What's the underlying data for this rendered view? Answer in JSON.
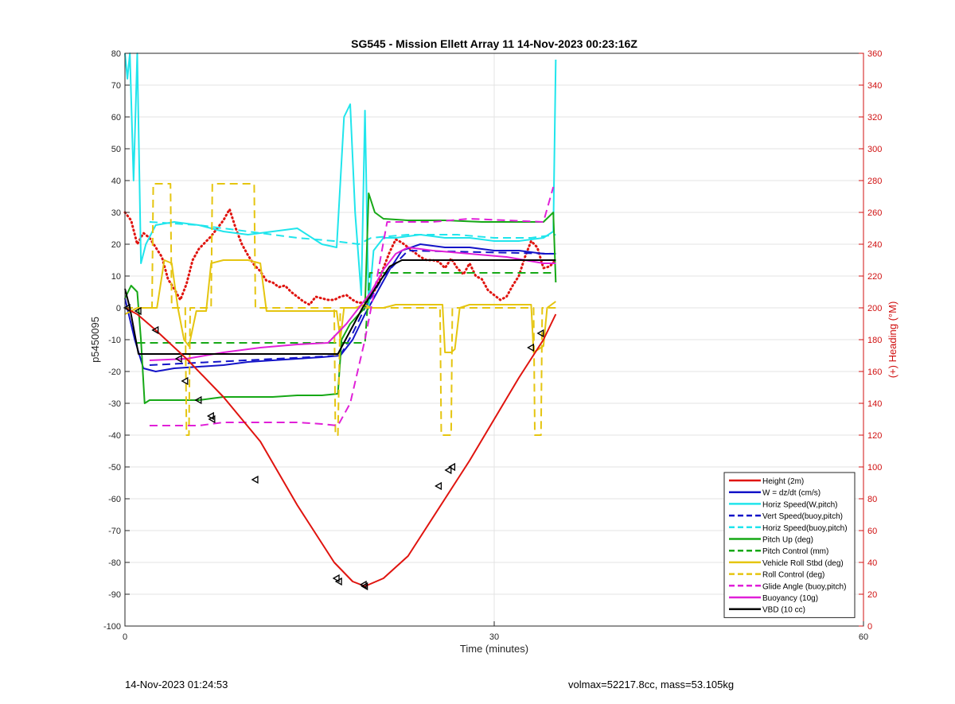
{
  "chart_data": {
    "type": "line",
    "title": "SG545 - Mission Ellett Array 11 14-Nov-2023 00:23:16Z",
    "xlabel": "Time (minutes)",
    "ylabel": "p5450095",
    "y2label": "(+) Heading (°M)",
    "xlim": [
      0,
      60
    ],
    "ylim": [
      -100,
      80
    ],
    "y2lim": [
      0,
      360
    ],
    "xticks": [
      0,
      30,
      60
    ],
    "yticks": [
      -100,
      -90,
      -80,
      -70,
      -60,
      -50,
      -40,
      -30,
      -20,
      -10,
      0,
      10,
      20,
      30,
      40,
      50,
      60,
      70,
      80
    ],
    "y2ticks": [
      0,
      20,
      40,
      60,
      80,
      100,
      120,
      140,
      160,
      180,
      200,
      220,
      240,
      260,
      280,
      300,
      320,
      340,
      360
    ],
    "grid": true,
    "legend_position": "bottom-right",
    "series": [
      {
        "name": "Height (2m)",
        "color": "#e0140f",
        "style": "solid",
        "x": [
          0,
          1,
          2.5,
          5,
          8,
          11,
          14,
          17,
          18.5,
          19.5,
          21,
          23,
          26,
          28,
          30,
          32,
          34,
          35
        ],
        "y": [
          0,
          -2,
          -7,
          -16,
          -28,
          -42,
          -62,
          -80,
          -86,
          -87.5,
          -85,
          -78,
          -60,
          -48,
          -35,
          -22,
          -10,
          -2
        ]
      },
      {
        "name": "W = dz/dt (cm/s)",
        "color": "#1414c8",
        "style": "solid",
        "x": [
          0,
          0.8,
          1.5,
          2.5,
          4,
          6,
          8,
          10,
          12,
          14,
          16,
          17.5,
          18.5,
          19.5,
          20.5,
          21.5,
          22.5,
          24,
          26,
          28,
          30,
          32,
          34,
          35
        ],
        "y": [
          3,
          -10,
          -19,
          -20,
          -19,
          -18.5,
          -18,
          -17,
          -16.5,
          -16,
          -15.5,
          -15,
          -10,
          -2,
          5,
          12,
          18,
          20,
          19,
          19,
          18,
          18,
          17,
          17
        ]
      },
      {
        "name": "Horiz Speed(W,pitch)",
        "color": "#20e5ec",
        "style": "solid",
        "x": [
          0,
          0.2,
          0.4,
          0.7,
          1.0,
          1.3,
          1.7,
          2.5,
          4,
          6,
          8,
          10,
          12,
          14,
          16,
          17.2,
          17.8,
          18.3,
          18.7,
          19.2,
          19.5,
          19.8,
          20.2,
          21,
          22,
          24,
          26,
          28,
          30,
          32,
          34,
          34.8,
          35
        ],
        "y": [
          80,
          72,
          80,
          40,
          80,
          14,
          20,
          26,
          27,
          26,
          24,
          23,
          24,
          25,
          20,
          19,
          60,
          64,
          30,
          4,
          62,
          0,
          18,
          22,
          22,
          23,
          22,
          22,
          21,
          21,
          22,
          24,
          78
        ]
      },
      {
        "name": "Vert Speed(buoy,pitch)",
        "color": "#1414c8",
        "style": "dashed",
        "x": [
          2,
          17.5,
          18.5,
          19.5,
          21,
          23,
          35
        ],
        "y": [
          -18,
          -15,
          -8,
          0,
          10,
          18,
          17
        ]
      },
      {
        "name": "Horiz Speed(buoy,pitch)",
        "color": "#20e5ec",
        "style": "dashed",
        "x": [
          2,
          6,
          10,
          14,
          17,
          19,
          20,
          23,
          27,
          30,
          33,
          35
        ],
        "y": [
          27,
          26,
          24,
          22,
          21,
          20,
          22,
          23,
          23,
          22,
          22,
          23
        ]
      },
      {
        "name": "Pitch Up (deg)",
        "color": "#16a816",
        "style": "solid",
        "x": [
          0,
          0.5,
          1,
          1.3,
          1.6,
          2,
          4,
          6,
          8,
          10,
          12,
          14,
          16,
          17.3,
          17.6,
          18.3,
          19,
          19.5,
          19.8,
          20.3,
          21,
          23,
          26,
          29,
          32,
          34,
          34.8,
          35
        ],
        "y": [
          3,
          7,
          5,
          -10,
          -30,
          -29,
          -29,
          -29,
          -28,
          -28,
          -28,
          -27.5,
          -27.5,
          -27,
          -10,
          -5,
          -2,
          0,
          36,
          30,
          28,
          27.5,
          27.5,
          27,
          27,
          27,
          30,
          8
        ]
      },
      {
        "name": "Pitch Control (mm)",
        "color": "#16a816",
        "style": "dashed",
        "x": [
          1,
          19.5,
          19.9,
          35
        ],
        "y": [
          -11,
          -11,
          11,
          11
        ]
      },
      {
        "name": "Vehicle Roll Stbd (deg)",
        "color": "#e5c510",
        "style": "solid",
        "x": [
          0,
          1,
          2,
          2.6,
          3.2,
          3.8,
          4.3,
          4.8,
          5.2,
          5.8,
          6.6,
          7,
          8,
          9,
          10,
          11,
          11.5,
          12,
          14,
          16,
          17.2,
          17.5,
          17.8,
          18.3,
          18.7,
          19.5,
          20,
          21,
          22,
          23,
          25,
          25.8,
          26,
          26.5,
          26.8,
          27.2,
          28,
          30,
          32,
          33,
          33.2,
          33.6,
          34,
          34.3,
          35
        ],
        "y": [
          -2,
          0,
          0,
          0,
          15,
          14,
          0,
          -10,
          -12,
          -1,
          -1,
          14,
          15,
          15,
          15,
          14,
          -1,
          -1,
          -1,
          -1,
          -1,
          -10,
          0,
          0,
          0,
          1,
          0,
          0,
          1,
          1,
          1,
          1,
          -14,
          -14,
          -13,
          0,
          1,
          1,
          1,
          1,
          -14,
          -13,
          -12,
          0,
          2
        ]
      },
      {
        "name": "Roll Control (deg)",
        "color": "#e5c510",
        "style": "dashed",
        "x": [
          0,
          2.2,
          2.3,
          3.7,
          3.8,
          4.9,
          5.0,
          5.2,
          5.3,
          7.0,
          7.1,
          10.5,
          10.6,
          17.0,
          17.1,
          17.3,
          17.5,
          25.6,
          25.7,
          26.5,
          26.6,
          33.2,
          33.3,
          33.8,
          33.9,
          35
        ],
        "y": [
          0,
          0,
          39,
          39,
          0,
          0,
          -40,
          -40,
          0,
          0,
          39,
          39,
          0,
          0,
          -40,
          -40,
          0,
          0,
          -40,
          -40,
          0,
          0,
          -40,
          -40,
          0,
          0
        ]
      },
      {
        "name": "Glide Angle (buoy,pitch)",
        "color": "#e020d8",
        "style": "dashed",
        "x": [
          2,
          4,
          6,
          8,
          10,
          12,
          14,
          16,
          17.3,
          18.3,
          19.5,
          20.5,
          21.3,
          22,
          25,
          28,
          31,
          34,
          34.8
        ],
        "y": [
          -37,
          -37,
          -37,
          -36,
          -36,
          -36,
          -36,
          -36.5,
          -37,
          -30,
          -10,
          10,
          27,
          27,
          27,
          28,
          27.5,
          27,
          38
        ]
      },
      {
        "name": "Buoyancy (10g)",
        "color": "#e020d8",
        "style": "solid",
        "x": [
          2,
          5,
          8,
          11,
          14,
          16.5,
          18,
          19,
          20,
          21,
          22,
          23,
          25,
          28,
          31,
          34,
          35
        ],
        "y": [
          -16.5,
          -16,
          -14,
          -12.5,
          -11.5,
          -11,
          -5,
          0,
          5,
          12,
          17,
          19,
          18,
          17,
          16,
          14,
          14
        ]
      },
      {
        "name": "VBD (10 cc)",
        "color": "#000000",
        "style": "solid",
        "x": [
          0,
          0.4,
          1.1,
          3,
          8,
          12,
          15,
          17.3,
          19.3,
          21.5,
          22.5,
          25,
          30,
          35
        ],
        "y": [
          6,
          0,
          -14.5,
          -14.5,
          -14.5,
          -14.5,
          -14.5,
          -14.5,
          0,
          13,
          15,
          15,
          15,
          15
        ]
      }
    ],
    "heading": {
      "color": "#e0140f",
      "style": "dotted",
      "axis": "right",
      "x": [
        0,
        0.5,
        1,
        1.5,
        2,
        2.5,
        3,
        3.5,
        4,
        4.5,
        5,
        5.5,
        6,
        6.5,
        7,
        7.5,
        8,
        8.5,
        9,
        9.5,
        10,
        10.5,
        11,
        11.5,
        12,
        12.5,
        13,
        13.5,
        14,
        14.5,
        15,
        15.5,
        16,
        16.5,
        17,
        17.5,
        18,
        18.5,
        19,
        19.5,
        20,
        20.5,
        21,
        21.5,
        22,
        22.5,
        23,
        23.5,
        24,
        24.5,
        25,
        25.5,
        26,
        26.5,
        27,
        27.5,
        28,
        28.5,
        29,
        29.5,
        30,
        30.5,
        31,
        31.5,
        32,
        32.5,
        33,
        33.5,
        34,
        34.5,
        35
      ],
      "y": [
        260,
        255,
        240,
        247,
        244,
        238,
        232,
        218,
        212,
        205,
        215,
        230,
        237,
        241,
        245,
        250,
        255,
        262,
        250,
        240,
        233,
        227,
        223,
        217,
        216,
        213,
        214,
        210,
        207,
        204,
        202,
        207,
        206,
        205,
        205,
        207,
        208,
        205,
        203,
        204,
        207,
        214,
        225,
        235,
        243,
        241,
        238,
        235,
        232,
        230,
        230,
        229,
        225,
        231,
        225,
        221,
        228,
        220,
        218,
        211,
        208,
        205,
        207,
        214,
        220,
        232,
        242,
        238,
        225,
        226,
        230
      ]
    },
    "height_markers": {
      "x": [
        0.2,
        1.1,
        2.5,
        4.4,
        4.9,
        6.0,
        7.0,
        7.1,
        10.6,
        17.2,
        17.4,
        19.4,
        19.5,
        25.5,
        26.3,
        26.6,
        33.0,
        33.8
      ],
      "y": [
        0,
        -1,
        -7,
        -16,
        -23,
        -29,
        -34,
        -35,
        -54,
        -85,
        -86,
        -87,
        -87.5,
        -56,
        -51,
        -50,
        -12.5,
        -8
      ]
    }
  },
  "footer": {
    "left": "14-Nov-2023 01:24:53",
    "right": "volmax=52217.8cc, mass=53.105kg"
  }
}
